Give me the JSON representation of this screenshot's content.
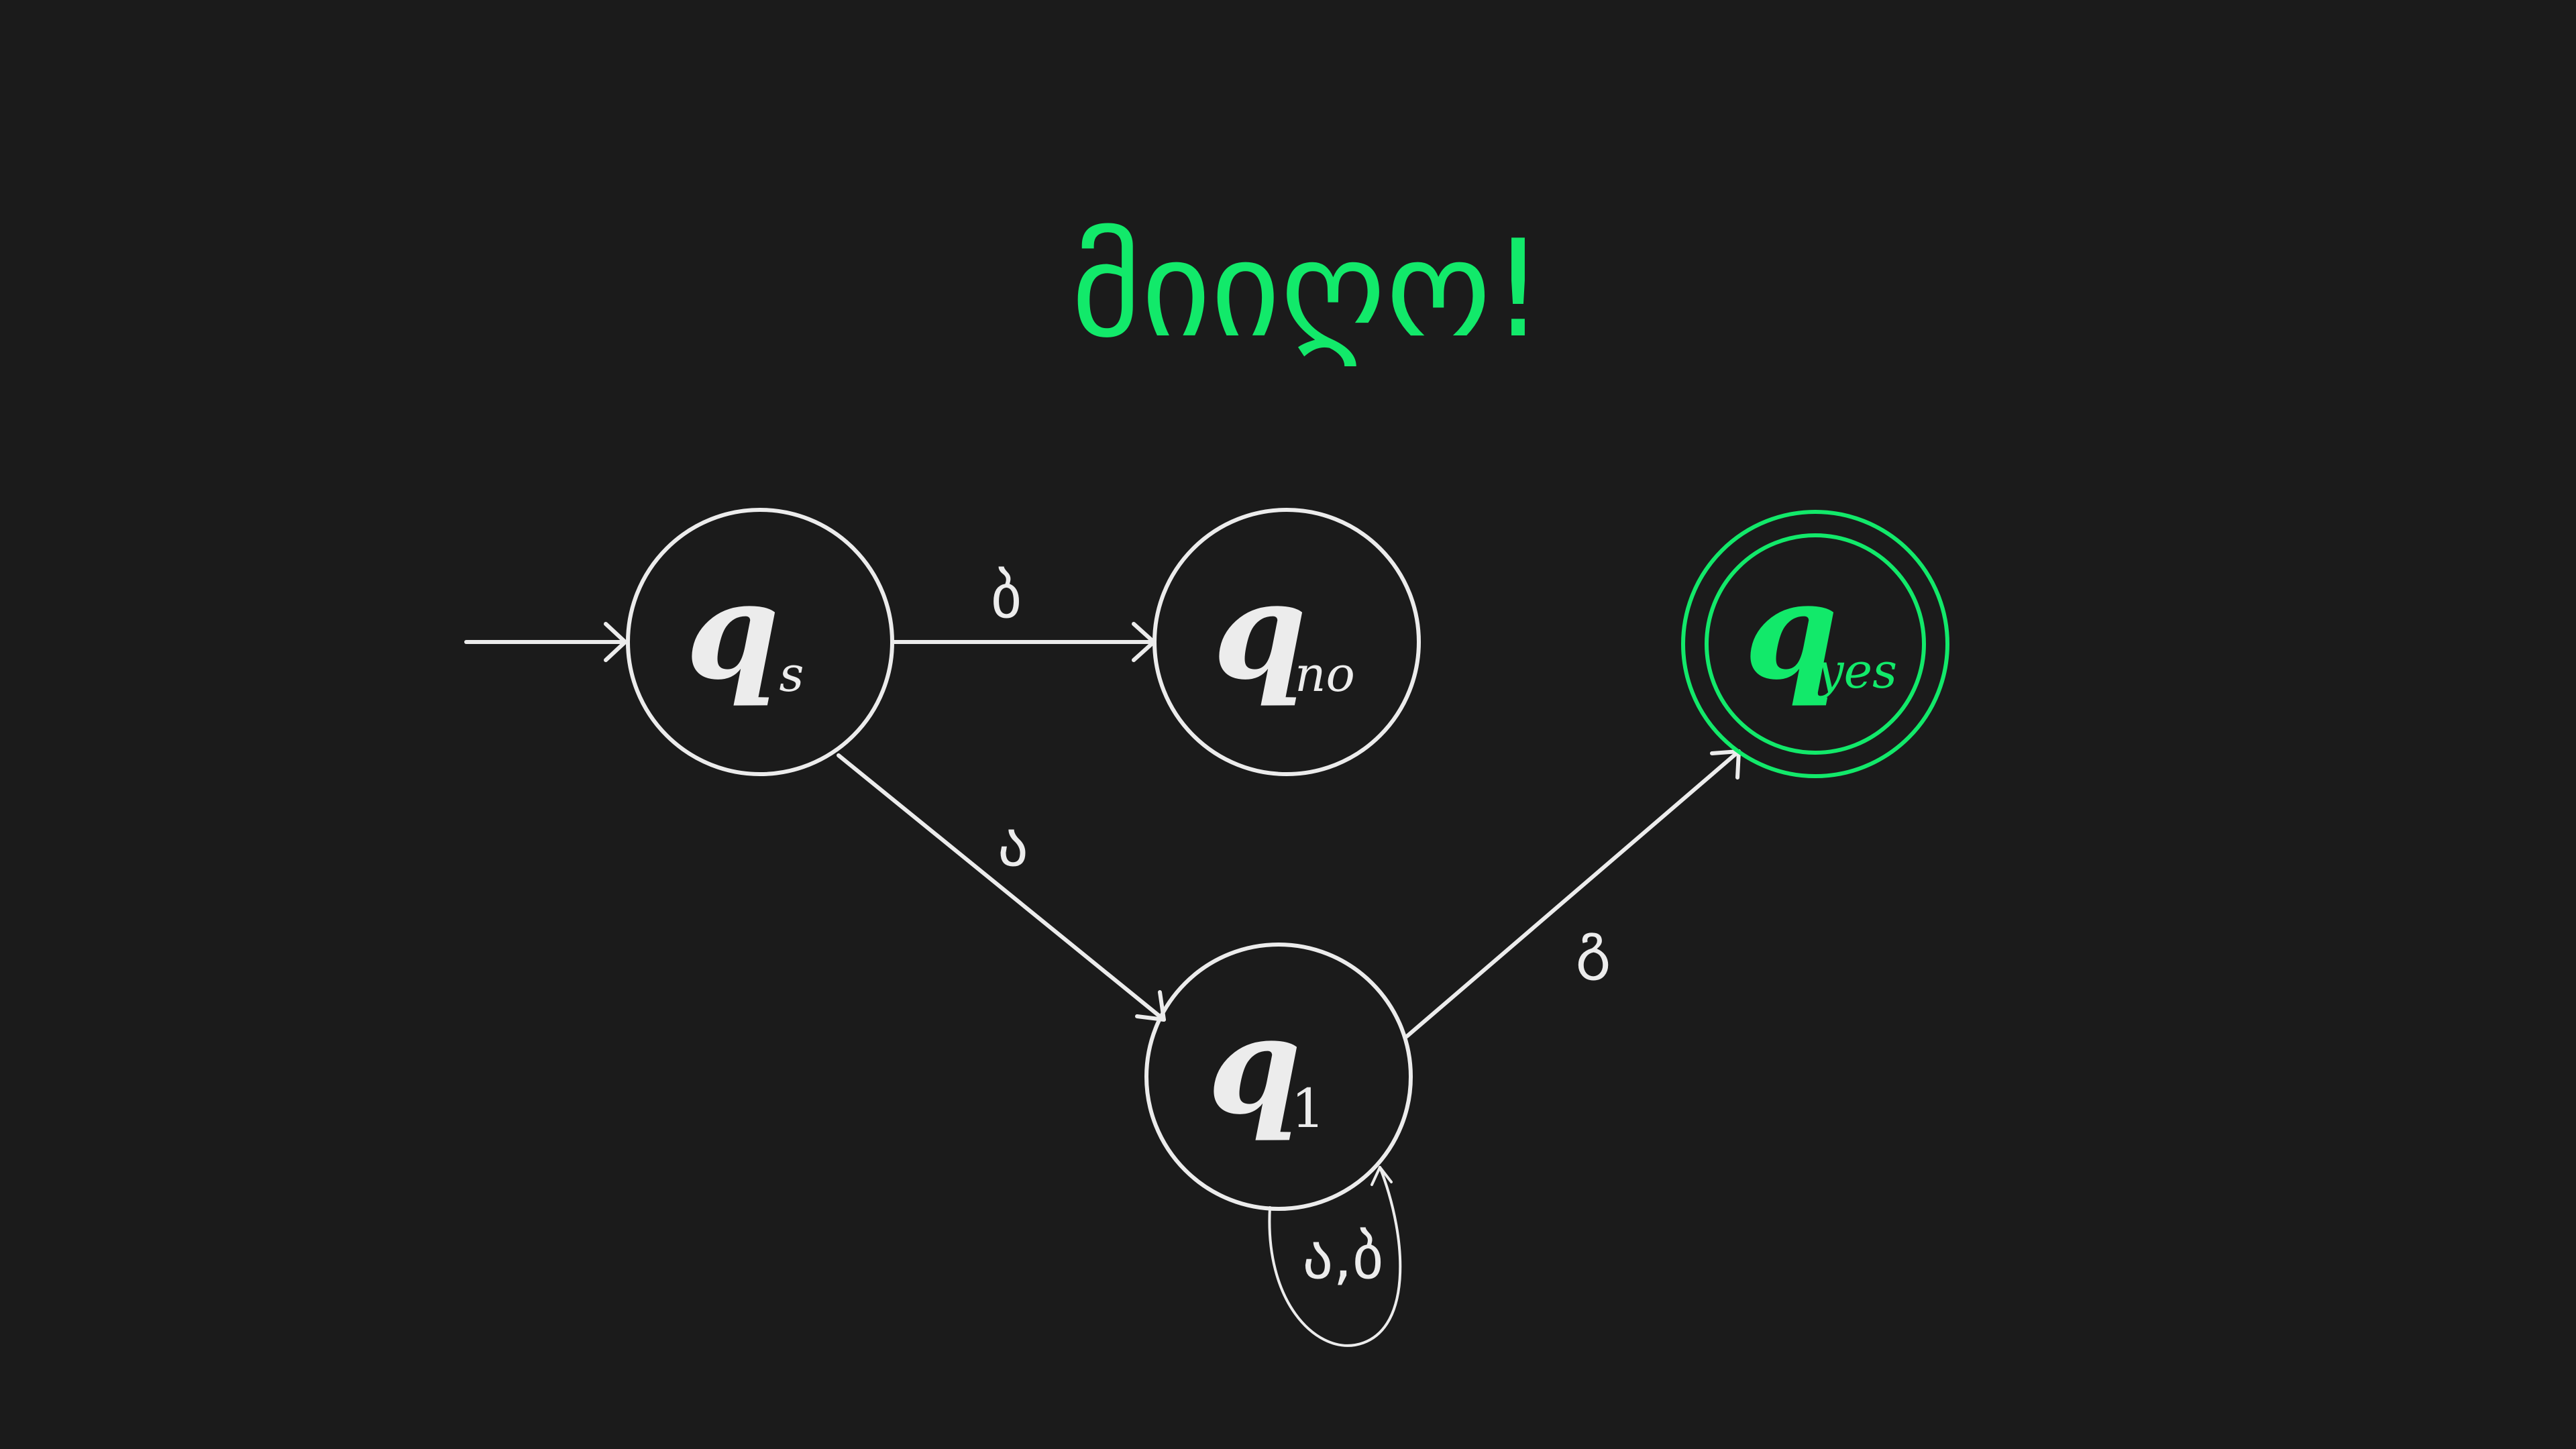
{
  "title": "მიიღო!",
  "colors": {
    "background": "#1b1b1b",
    "foreground": "#ececec",
    "accent": "#12e96a"
  },
  "states": {
    "qs": {
      "symbol": "q",
      "subscript": "s",
      "start": true,
      "accepting": false
    },
    "qno": {
      "symbol": "q",
      "subscript": "no",
      "start": false,
      "accepting": false
    },
    "q1": {
      "symbol": "q",
      "subscript": "1",
      "start": false,
      "accepting": false
    },
    "qyes": {
      "symbol": "q",
      "subscript": "yes",
      "start": false,
      "accepting": true
    }
  },
  "transitions": {
    "qs_qno": {
      "from": "qs",
      "to": "qno",
      "label": "ბ"
    },
    "qs_q1": {
      "from": "qs",
      "to": "q1",
      "label": "ა"
    },
    "q1_qyes": {
      "from": "q1",
      "to": "qyes",
      "label": "გ"
    },
    "q1_q1": {
      "from": "q1",
      "to": "q1",
      "label": "ა,ბ"
    }
  }
}
